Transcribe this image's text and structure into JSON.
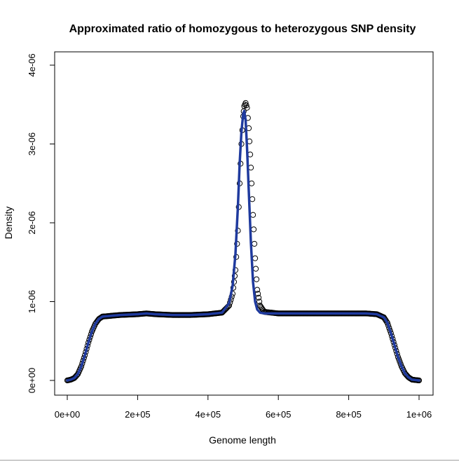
{
  "chart_data": {
    "type": "scatter",
    "title": "Approximated ratio of homozygous to heterozygous SNP density",
    "xlabel": "Genome length",
    "ylabel": "Density",
    "xlim": [
      0,
      1000000
    ],
    "ylim": [
      0,
      4e-06
    ],
    "xticks": [
      "0e+00",
      "2e+05",
      "4e+05",
      "6e+05",
      "8e+05",
      "1e+06"
    ],
    "yticks": [
      "0e+00",
      "1e-06",
      "2e-06",
      "3e-06",
      "4e-06"
    ],
    "grid": false,
    "legend": "none",
    "series": [
      {
        "kind": "points",
        "marker": "open-circle",
        "color": "#000000",
        "points": [
          [
            0,
            0.0
          ],
          [
            10000,
            1e-08
          ],
          [
            20000,
            3e-08
          ],
          [
            30000,
            8e-08
          ],
          [
            40000,
            1.8e-07
          ],
          [
            50000,
            3.2e-07
          ],
          [
            60000,
            4.8e-07
          ],
          [
            70000,
            6.2e-07
          ],
          [
            80000,
            7.2e-07
          ],
          [
            90000,
            7.8e-07
          ],
          [
            100000,
            8.1e-07
          ],
          [
            150000,
            8.3e-07
          ],
          [
            200000,
            8.4e-07
          ],
          [
            225000,
            8.5e-07
          ],
          [
            250000,
            8.4e-07
          ],
          [
            300000,
            8.3e-07
          ],
          [
            350000,
            8.3e-07
          ],
          [
            400000,
            8.4e-07
          ],
          [
            440000,
            8.6e-07
          ],
          [
            460000,
            9.5e-07
          ],
          [
            470000,
            1.1e-06
          ],
          [
            478000,
            1.4e-06
          ],
          [
            485000,
            1.9e-06
          ],
          [
            490000,
            2.5e-06
          ],
          [
            495000,
            3e-06
          ],
          [
            500000,
            3.35e-06
          ],
          [
            503000,
            3.48e-06
          ],
          [
            507000,
            3.52e-06
          ],
          [
            511000,
            3.46e-06
          ],
          [
            516000,
            3.2e-06
          ],
          [
            522000,
            2.7e-06
          ],
          [
            528000,
            2.1e-06
          ],
          [
            534000,
            1.55e-06
          ],
          [
            540000,
            1.15e-06
          ],
          [
            548000,
            9.5e-07
          ],
          [
            560000,
            8.7e-07
          ],
          [
            600000,
            8.5e-07
          ],
          [
            650000,
            8.5e-07
          ],
          [
            700000,
            8.5e-07
          ],
          [
            750000,
            8.5e-07
          ],
          [
            800000,
            8.5e-07
          ],
          [
            850000,
            8.5e-07
          ],
          [
            880000,
            8.4e-07
          ],
          [
            900000,
            8e-07
          ],
          [
            910000,
            7.3e-07
          ],
          [
            920000,
            6e-07
          ],
          [
            930000,
            4.5e-07
          ],
          [
            940000,
            3e-07
          ],
          [
            950000,
            1.8e-07
          ],
          [
            960000,
            9e-08
          ],
          [
            970000,
            4e-08
          ],
          [
            980000,
            1e-08
          ],
          [
            1000000,
            0.0
          ]
        ]
      },
      {
        "kind": "line",
        "color": "#1f3a9e",
        "points": [
          [
            0,
            0.0
          ],
          [
            10000,
            1e-08
          ],
          [
            20000,
            3e-08
          ],
          [
            30000,
            8e-08
          ],
          [
            40000,
            1.8e-07
          ],
          [
            50000,
            3.2e-07
          ],
          [
            60000,
            4.8e-07
          ],
          [
            70000,
            6.2e-07
          ],
          [
            80000,
            7.2e-07
          ],
          [
            90000,
            7.8e-07
          ],
          [
            100000,
            8.1e-07
          ],
          [
            150000,
            8.3e-07
          ],
          [
            200000,
            8.4e-07
          ],
          [
            225000,
            8.5e-07
          ],
          [
            250000,
            8.4e-07
          ],
          [
            300000,
            8.3e-07
          ],
          [
            350000,
            8.3e-07
          ],
          [
            400000,
            8.4e-07
          ],
          [
            440000,
            8.6e-07
          ],
          [
            460000,
            9.8e-07
          ],
          [
            470000,
            1.2e-06
          ],
          [
            478000,
            1.6e-06
          ],
          [
            485000,
            2.2e-06
          ],
          [
            490000,
            2.75e-06
          ],
          [
            495000,
            3.15e-06
          ],
          [
            500000,
            3.38e-06
          ],
          [
            503000,
            3.42e-06
          ],
          [
            507000,
            3.3e-06
          ],
          [
            511000,
            2.95e-06
          ],
          [
            516000,
            2.4e-06
          ],
          [
            522000,
            1.75e-06
          ],
          [
            528000,
            1.25e-06
          ],
          [
            534000,
            1e-06
          ],
          [
            540000,
            9e-07
          ],
          [
            548000,
            8.6e-07
          ],
          [
            560000,
            8.5e-07
          ],
          [
            600000,
            8.5e-07
          ],
          [
            650000,
            8.5e-07
          ],
          [
            700000,
            8.5e-07
          ],
          [
            750000,
            8.5e-07
          ],
          [
            800000,
            8.5e-07
          ],
          [
            850000,
            8.5e-07
          ],
          [
            880000,
            8.4e-07
          ],
          [
            900000,
            8e-07
          ],
          [
            910000,
            7.3e-07
          ],
          [
            920000,
            6e-07
          ],
          [
            930000,
            4.5e-07
          ],
          [
            940000,
            3e-07
          ],
          [
            950000,
            1.8e-07
          ],
          [
            960000,
            9e-08
          ],
          [
            970000,
            4e-08
          ],
          [
            980000,
            1e-08
          ],
          [
            1000000,
            0.0
          ]
        ]
      }
    ]
  }
}
